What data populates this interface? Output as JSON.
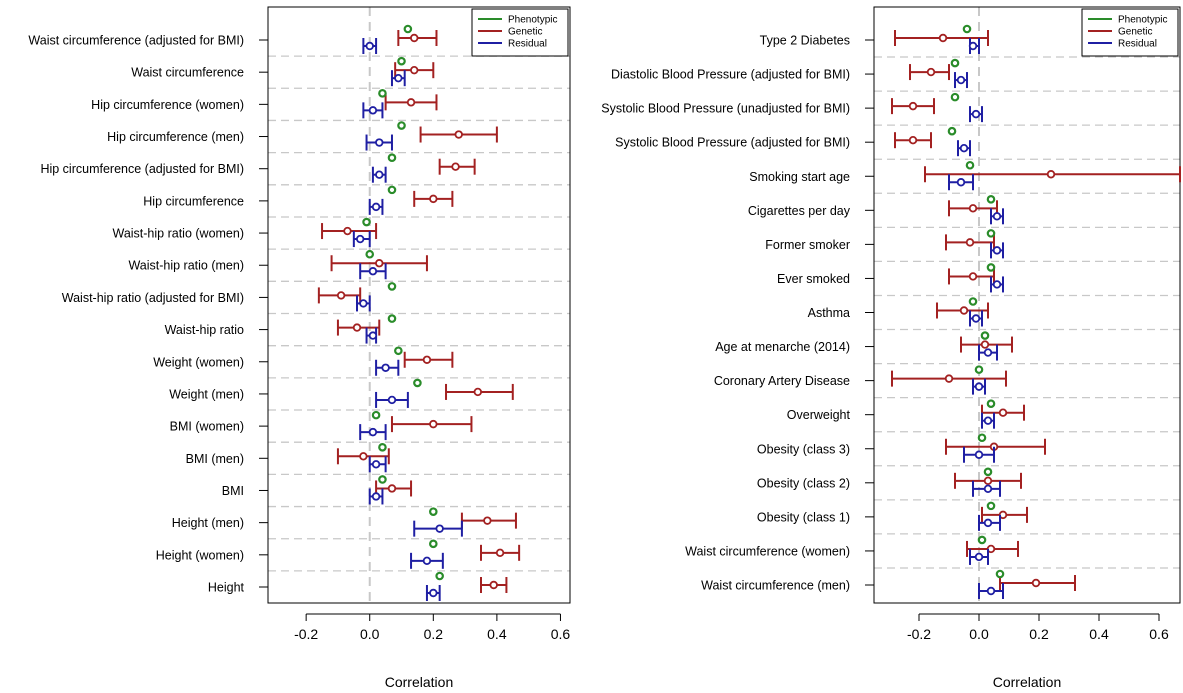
{
  "colors": {
    "phenotypic": "#2a8c2a",
    "genetic": "#a32121",
    "residual": "#1f1fa3",
    "grid": "#c8c8c8",
    "zero_line": "#c8c8c8"
  },
  "chart_data": [
    {
      "type": "forest",
      "xlabel": "Correlation",
      "xlim": [
        -0.32,
        0.63
      ],
      "xticks": [
        -0.2,
        0.0,
        0.2,
        0.4,
        0.6
      ],
      "xtick_labels": [
        "-0.2",
        "0.0",
        "0.2",
        "0.4",
        "0.6"
      ],
      "legend": [
        "Phenotypic",
        "Genetic",
        "Residual"
      ],
      "legend_position": "top-right",
      "zero_line": true,
      "rows": [
        {
          "label": "Waist circumference (adjusted for BMI)",
          "phenotypic": 0.12,
          "genetic": {
            "est": 0.14,
            "lo": 0.09,
            "hi": 0.21
          },
          "residual": {
            "est": 0.0,
            "lo": -0.02,
            "hi": 0.02
          }
        },
        {
          "label": "Waist circumference",
          "phenotypic": 0.1,
          "genetic": {
            "est": 0.14,
            "lo": 0.08,
            "hi": 0.2
          },
          "residual": {
            "est": 0.09,
            "lo": 0.07,
            "hi": 0.11
          }
        },
        {
          "label": "Hip circumference (women)",
          "phenotypic": 0.04,
          "genetic": {
            "est": 0.13,
            "lo": 0.05,
            "hi": 0.21
          },
          "residual": {
            "est": 0.01,
            "lo": -0.02,
            "hi": 0.04
          }
        },
        {
          "label": "Hip circumference (men)",
          "phenotypic": 0.1,
          "genetic": {
            "est": 0.28,
            "lo": 0.16,
            "hi": 0.4
          },
          "residual": {
            "est": 0.03,
            "lo": -0.01,
            "hi": 0.07
          }
        },
        {
          "label": "Hip circumference (adjusted for BMI)",
          "phenotypic": 0.07,
          "genetic": {
            "est": 0.27,
            "lo": 0.22,
            "hi": 0.33
          },
          "residual": {
            "est": 0.03,
            "lo": 0.01,
            "hi": 0.05
          }
        },
        {
          "label": "Hip circumference",
          "phenotypic": 0.07,
          "genetic": {
            "est": 0.2,
            "lo": 0.14,
            "hi": 0.26
          },
          "residual": {
            "est": 0.02,
            "lo": 0.0,
            "hi": 0.04
          }
        },
        {
          "label": "Waist-hip ratio (women)",
          "phenotypic": -0.01,
          "genetic": {
            "est": -0.07,
            "lo": -0.15,
            "hi": 0.02
          },
          "residual": {
            "est": -0.03,
            "lo": -0.05,
            "hi": 0.0
          }
        },
        {
          "label": "Waist-hip ratio (men)",
          "phenotypic": 0.0,
          "genetic": {
            "est": 0.03,
            "lo": -0.12,
            "hi": 0.18
          },
          "residual": {
            "est": 0.01,
            "lo": -0.03,
            "hi": 0.05
          }
        },
        {
          "label": "Waist-hip ratio (adjusted for BMI)",
          "phenotypic": 0.07,
          "genetic": {
            "est": -0.09,
            "lo": -0.16,
            "hi": -0.03
          },
          "residual": {
            "est": -0.02,
            "lo": -0.04,
            "hi": 0.0
          }
        },
        {
          "label": "Waist-hip ratio",
          "phenotypic": 0.07,
          "genetic": {
            "est": -0.04,
            "lo": -0.1,
            "hi": 0.03
          },
          "residual": {
            "est": 0.01,
            "lo": -0.01,
            "hi": 0.02
          }
        },
        {
          "label": "Weight (women)",
          "phenotypic": 0.09,
          "genetic": {
            "est": 0.18,
            "lo": 0.11,
            "hi": 0.26
          },
          "residual": {
            "est": 0.05,
            "lo": 0.02,
            "hi": 0.09
          }
        },
        {
          "label": "Weight (men)",
          "phenotypic": 0.15,
          "genetic": {
            "est": 0.34,
            "lo": 0.24,
            "hi": 0.45
          },
          "residual": {
            "est": 0.07,
            "lo": 0.02,
            "hi": 0.12
          }
        },
        {
          "label": "BMI (women)",
          "phenotypic": 0.02,
          "genetic": {
            "est": 0.2,
            "lo": 0.07,
            "hi": 0.32
          },
          "residual": {
            "est": 0.01,
            "lo": -0.03,
            "hi": 0.05
          }
        },
        {
          "label": "BMI (men)",
          "phenotypic": 0.04,
          "genetic": {
            "est": -0.02,
            "lo": -0.1,
            "hi": 0.06
          },
          "residual": {
            "est": 0.02,
            "lo": 0.0,
            "hi": 0.05
          }
        },
        {
          "label": "BMI",
          "phenotypic": 0.04,
          "genetic": {
            "est": 0.07,
            "lo": 0.02,
            "hi": 0.13
          },
          "residual": {
            "est": 0.02,
            "lo": 0.0,
            "hi": 0.04
          }
        },
        {
          "label": "Height (men)",
          "phenotypic": 0.2,
          "genetic": {
            "est": 0.37,
            "lo": 0.29,
            "hi": 0.46
          },
          "residual": {
            "est": 0.22,
            "lo": 0.14,
            "hi": 0.29
          }
        },
        {
          "label": "Height (women)",
          "phenotypic": 0.2,
          "genetic": {
            "est": 0.41,
            "lo": 0.35,
            "hi": 0.47
          },
          "residual": {
            "est": 0.18,
            "lo": 0.13,
            "hi": 0.23
          }
        },
        {
          "label": "Height",
          "phenotypic": 0.22,
          "genetic": {
            "est": 0.39,
            "lo": 0.35,
            "hi": 0.43
          },
          "residual": {
            "est": 0.2,
            "lo": 0.18,
            "hi": 0.22
          }
        }
      ]
    },
    {
      "type": "forest",
      "xlabel": "Correlation",
      "xlim": [
        -0.35,
        0.67
      ],
      "xticks": [
        -0.2,
        0.0,
        0.2,
        0.4,
        0.6
      ],
      "xtick_labels": [
        "-0.2",
        "0.0",
        "0.2",
        "0.4",
        "0.6"
      ],
      "legend": [
        "Phenotypic",
        "Genetic",
        "Residual"
      ],
      "legend_position": "top-right",
      "zero_line": true,
      "rows": [
        {
          "label": "Type 2 Diabetes",
          "phenotypic": -0.04,
          "genetic": {
            "est": -0.12,
            "lo": -0.28,
            "hi": 0.03
          },
          "residual": {
            "est": -0.02,
            "lo": -0.03,
            "hi": 0.0
          }
        },
        {
          "label": "Diastolic Blood Pressure (adjusted for BMI)",
          "phenotypic": -0.08,
          "genetic": {
            "est": -0.16,
            "lo": -0.23,
            "hi": -0.1
          },
          "residual": {
            "est": -0.06,
            "lo": -0.08,
            "hi": -0.04
          }
        },
        {
          "label": "Systolic Blood Pressure (unadjusted for BMI)",
          "phenotypic": -0.08,
          "genetic": {
            "est": -0.22,
            "lo": -0.29,
            "hi": -0.15
          },
          "residual": {
            "est": -0.01,
            "lo": -0.03,
            "hi": 0.01
          }
        },
        {
          "label": "Systolic Blood Pressure (adjusted for BMI)",
          "phenotypic": -0.09,
          "genetic": {
            "est": -0.22,
            "lo": -0.28,
            "hi": -0.16
          },
          "residual": {
            "est": -0.05,
            "lo": -0.07,
            "hi": -0.03
          }
        },
        {
          "label": "Smoking start age",
          "phenotypic": -0.03,
          "genetic": {
            "est": 0.24,
            "lo": -0.18,
            "hi": 0.67
          },
          "residual": {
            "est": -0.06,
            "lo": -0.1,
            "hi": -0.02
          }
        },
        {
          "label": "Cigarettes per day",
          "phenotypic": 0.04,
          "genetic": {
            "est": -0.02,
            "lo": -0.1,
            "hi": 0.06
          },
          "residual": {
            "est": 0.06,
            "lo": 0.04,
            "hi": 0.08
          }
        },
        {
          "label": "Former smoker",
          "phenotypic": 0.04,
          "genetic": {
            "est": -0.03,
            "lo": -0.11,
            "hi": 0.05
          },
          "residual": {
            "est": 0.06,
            "lo": 0.04,
            "hi": 0.08
          }
        },
        {
          "label": "Ever smoked",
          "phenotypic": 0.04,
          "genetic": {
            "est": -0.02,
            "lo": -0.1,
            "hi": 0.05
          },
          "residual": {
            "est": 0.06,
            "lo": 0.04,
            "hi": 0.08
          }
        },
        {
          "label": "Asthma",
          "phenotypic": -0.02,
          "genetic": {
            "est": -0.05,
            "lo": -0.14,
            "hi": 0.03
          },
          "residual": {
            "est": -0.01,
            "lo": -0.03,
            "hi": 0.01
          }
        },
        {
          "label": "Age at menarche (2014)",
          "phenotypic": 0.02,
          "genetic": {
            "est": 0.02,
            "lo": -0.06,
            "hi": 0.11
          },
          "residual": {
            "est": 0.03,
            "lo": 0.0,
            "hi": 0.06
          }
        },
        {
          "label": "Coronary Artery Disease",
          "phenotypic": 0.0,
          "genetic": {
            "est": -0.1,
            "lo": -0.29,
            "hi": 0.09
          },
          "residual": {
            "est": 0.0,
            "lo": -0.02,
            "hi": 0.02
          }
        },
        {
          "label": "Overweight",
          "phenotypic": 0.04,
          "genetic": {
            "est": 0.08,
            "lo": 0.01,
            "hi": 0.15
          },
          "residual": {
            "est": 0.03,
            "lo": 0.01,
            "hi": 0.05
          }
        },
        {
          "label": "Obesity (class 3)",
          "phenotypic": 0.01,
          "genetic": {
            "est": 0.05,
            "lo": -0.11,
            "hi": 0.22
          },
          "residual": {
            "est": 0.0,
            "lo": -0.05,
            "hi": 0.05
          }
        },
        {
          "label": "Obesity (class 2)",
          "phenotypic": 0.03,
          "genetic": {
            "est": 0.03,
            "lo": -0.08,
            "hi": 0.14
          },
          "residual": {
            "est": 0.03,
            "lo": -0.02,
            "hi": 0.07
          }
        },
        {
          "label": "Obesity (class 1)",
          "phenotypic": 0.04,
          "genetic": {
            "est": 0.08,
            "lo": 0.01,
            "hi": 0.16
          },
          "residual": {
            "est": 0.03,
            "lo": 0.0,
            "hi": 0.07
          }
        },
        {
          "label": "Waist circumference (women)",
          "phenotypic": 0.01,
          "genetic": {
            "est": 0.04,
            "lo": -0.04,
            "hi": 0.13
          },
          "residual": {
            "est": 0.0,
            "lo": -0.03,
            "hi": 0.03
          }
        },
        {
          "label": "Waist circumference (men)",
          "phenotypic": 0.07,
          "genetic": {
            "est": 0.19,
            "lo": 0.07,
            "hi": 0.32
          },
          "residual": {
            "est": 0.04,
            "lo": 0.0,
            "hi": 0.08
          }
        }
      ]
    }
  ]
}
